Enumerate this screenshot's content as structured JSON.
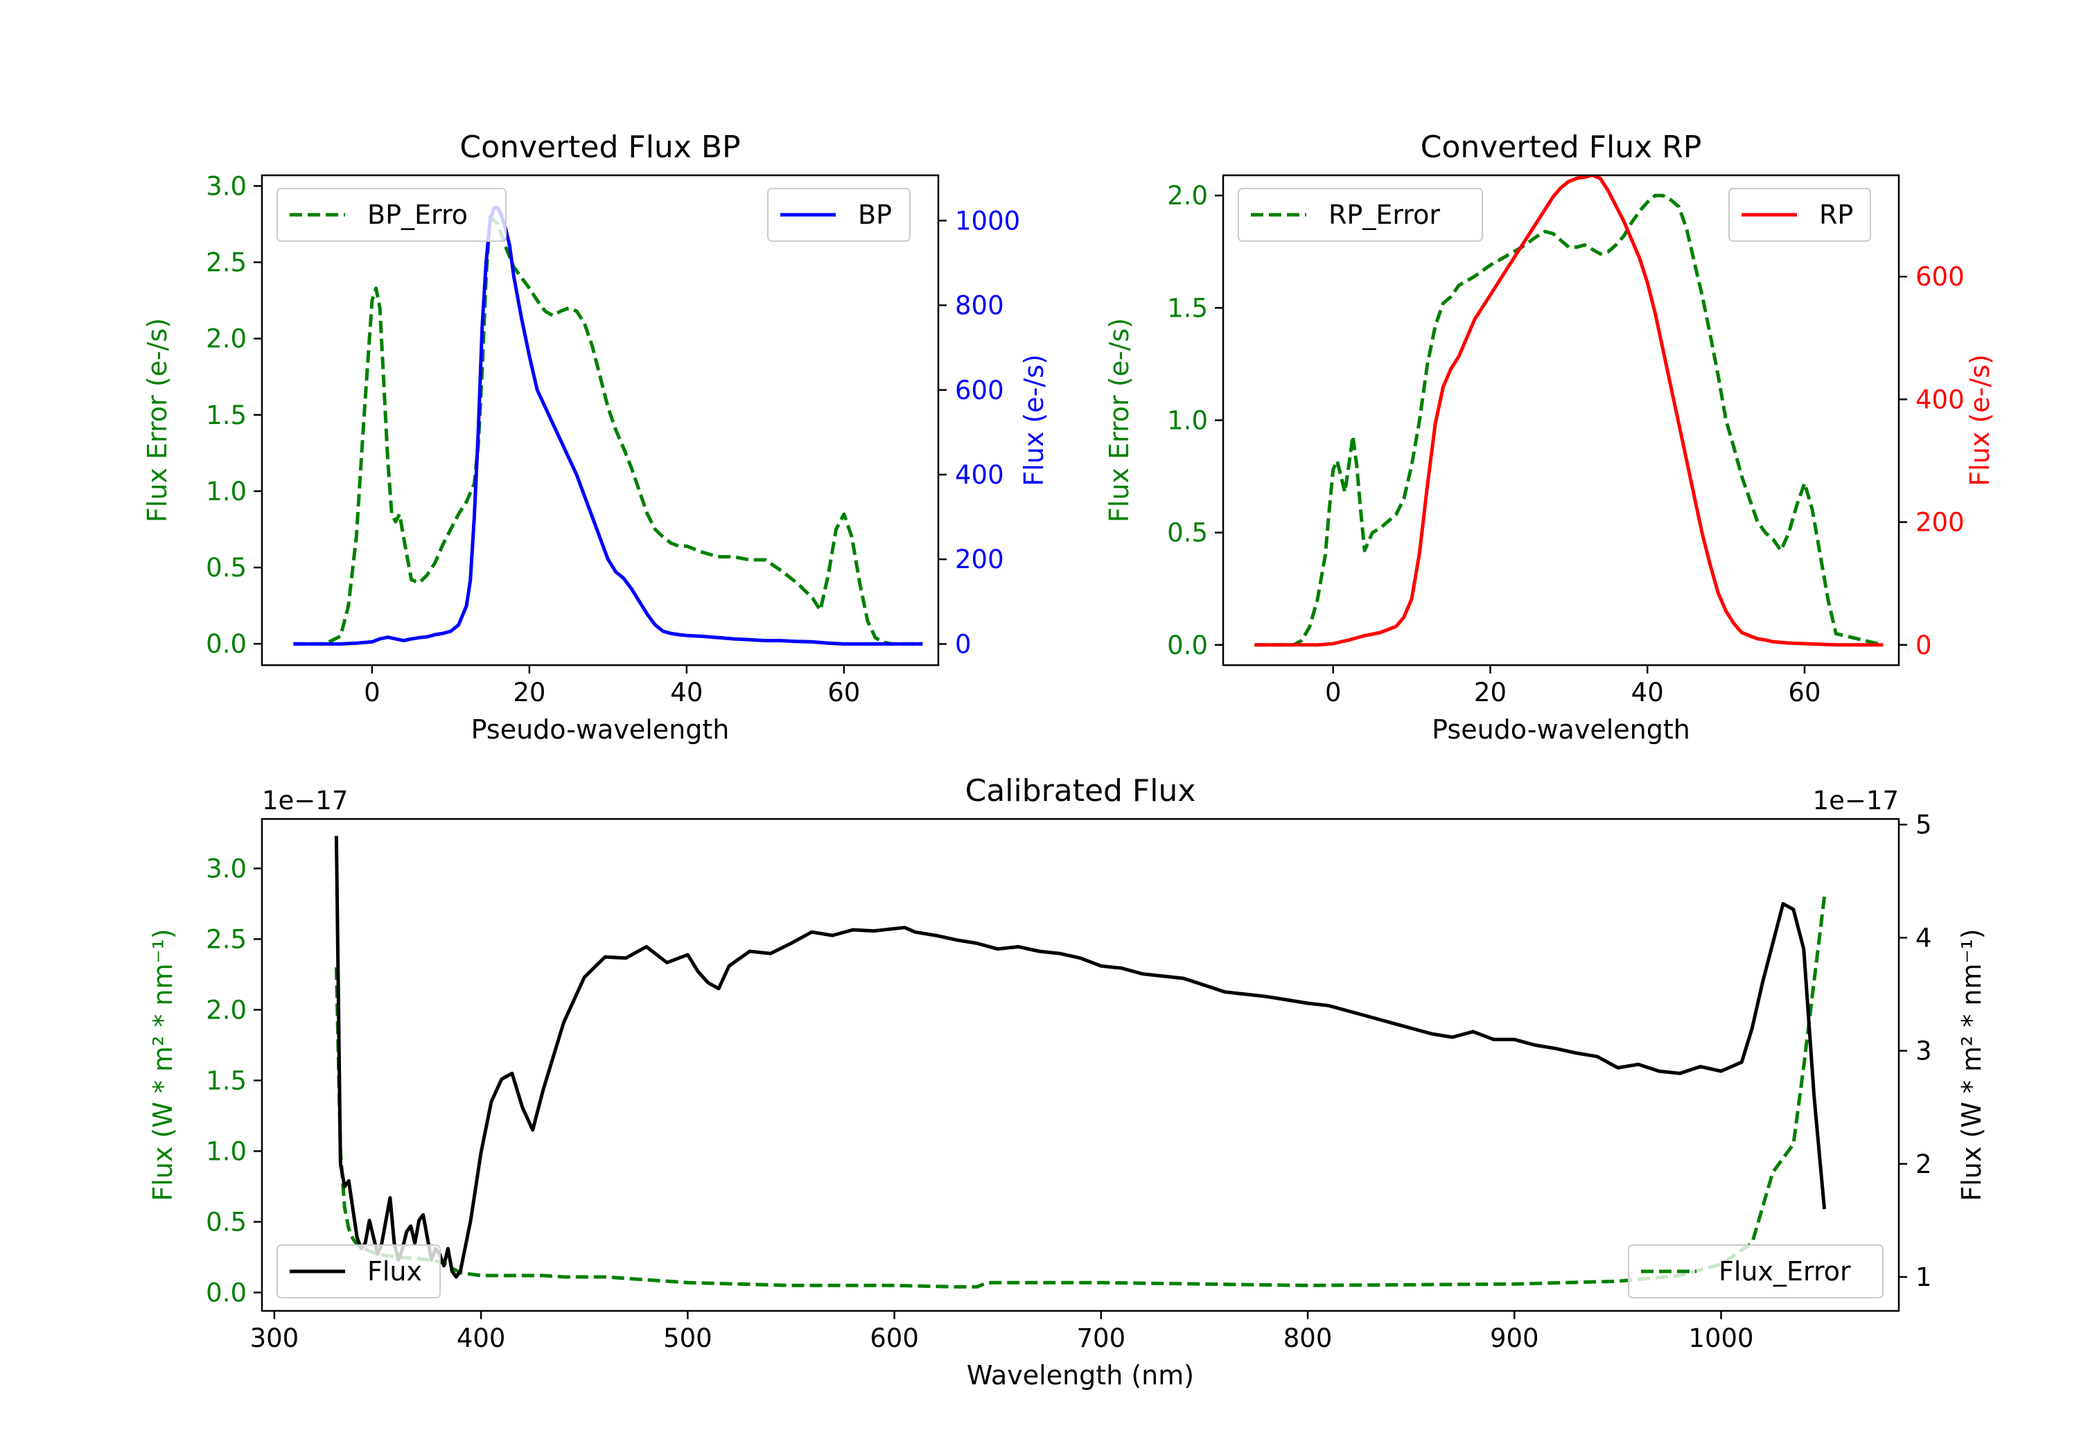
{
  "chart_data": [
    {
      "id": "bp",
      "type": "line",
      "title": "Converted Flux BP",
      "xlabel": "Pseudo-wavelength",
      "ylabel": "Flux Error (e-/s)",
      "ylabel_right": "Flux (e-/s)",
      "xlim": [
        -14,
        72
      ],
      "ylim": [
        -0.14,
        3.07
      ],
      "ylim_right": [
        -50,
        1107
      ],
      "xticks": [
        0,
        20,
        40,
        60
      ],
      "yticks": [
        0.0,
        0.5,
        1.0,
        1.5,
        2.0,
        2.5,
        3.0
      ],
      "yticks_right": [
        0,
        200,
        400,
        600,
        800,
        1000
      ],
      "left_color": "#008000",
      "right_color": "#0000ff",
      "series": [
        {
          "name": "BP_Error",
          "axis": "left",
          "color": "#008000",
          "dash": true,
          "x": [
            -10,
            -8,
            -6,
            -4,
            -3,
            -2,
            -1,
            0,
            0.5,
            1,
            1.5,
            2,
            2.5,
            3,
            3.5,
            4,
            5,
            6,
            7,
            8,
            9,
            10,
            11,
            12,
            13,
            13.5,
            14,
            14.5,
            15,
            16,
            17,
            18,
            19,
            20,
            21,
            22,
            23,
            24,
            25,
            26,
            27,
            28,
            29,
            30,
            31,
            32,
            33,
            34,
            35,
            36,
            37,
            38,
            39,
            40,
            42,
            44,
            46,
            48,
            50,
            52,
            54,
            56,
            57,
            58,
            59,
            60,
            61,
            62,
            63,
            64,
            65,
            66,
            70
          ],
          "values": [
            0.0,
            0.0,
            0.0,
            0.05,
            0.25,
            0.7,
            1.5,
            2.25,
            2.33,
            2.2,
            1.7,
            1.2,
            0.85,
            0.8,
            0.85,
            0.7,
            0.42,
            0.4,
            0.45,
            0.53,
            0.65,
            0.75,
            0.85,
            0.93,
            1.05,
            1.3,
            1.8,
            2.4,
            2.8,
            2.75,
            2.6,
            2.47,
            2.4,
            2.33,
            2.25,
            2.18,
            2.15,
            2.18,
            2.2,
            2.18,
            2.1,
            1.95,
            1.75,
            1.55,
            1.4,
            1.28,
            1.15,
            1.0,
            0.85,
            0.75,
            0.7,
            0.66,
            0.64,
            0.64,
            0.6,
            0.57,
            0.57,
            0.55,
            0.55,
            0.48,
            0.4,
            0.3,
            0.22,
            0.45,
            0.75,
            0.85,
            0.7,
            0.4,
            0.15,
            0.04,
            0.01,
            0.0,
            0.0
          ]
        },
        {
          "name": "BP",
          "axis": "right",
          "color": "#0000ff",
          "dash": false,
          "x": [
            -10,
            -8,
            -6,
            -4,
            -2,
            0,
            1,
            2,
            3,
            4,
            5,
            6,
            7,
            8,
            9,
            10,
            11,
            12,
            12.5,
            13,
            13.5,
            14,
            14.5,
            15,
            15.5,
            16,
            16.5,
            17,
            17.5,
            18,
            19,
            20,
            21,
            22,
            23,
            24,
            25,
            26,
            27,
            28,
            29,
            30,
            31,
            32,
            33,
            34,
            35,
            36,
            37,
            38,
            39,
            40,
            42,
            44,
            46,
            48,
            50,
            52,
            54,
            56,
            58,
            60,
            62,
            64,
            66,
            68,
            70
          ],
          "values": [
            0,
            0,
            0,
            0,
            2,
            5,
            12,
            16,
            12,
            8,
            12,
            15,
            17,
            22,
            25,
            30,
            45,
            90,
            150,
            300,
            500,
            750,
            900,
            1000,
            1030,
            1030,
            1010,
            980,
            940,
            870,
            770,
            680,
            600,
            560,
            520,
            480,
            440,
            400,
            350,
            300,
            250,
            200,
            170,
            155,
            130,
            100,
            70,
            45,
            30,
            25,
            22,
            20,
            18,
            15,
            12,
            10,
            8,
            8,
            6,
            5,
            2,
            0,
            0,
            0,
            0,
            0,
            0
          ]
        }
      ],
      "legend": [
        "BP_Erro",
        "BP"
      ]
    },
    {
      "id": "rp",
      "type": "line",
      "title": "Converted Flux RP",
      "xlabel": "Pseudo-wavelength",
      "ylabel": "Flux Error (e-/s)",
      "ylabel_right": "Flux (e-/s)",
      "xlim": [
        -14,
        72
      ],
      "ylim": [
        -0.09,
        2.09
      ],
      "ylim_right": [
        -33,
        765
      ],
      "xticks": [
        0,
        20,
        40,
        60
      ],
      "yticks": [
        0.0,
        0.5,
        1.0,
        1.5,
        2.0
      ],
      "yticks_right": [
        0,
        200,
        400,
        600
      ],
      "left_color": "#008000",
      "right_color": "#ff0000",
      "series": [
        {
          "name": "RP_Error",
          "axis": "left",
          "color": "#008000",
          "dash": true,
          "x": [
            -10,
            -5,
            -4,
            -3,
            -2,
            -1,
            -0.5,
            0,
            0.5,
            1,
            1.5,
            2,
            2.5,
            3,
            3.5,
            4,
            5,
            6,
            7,
            8,
            9,
            10,
            11,
            12,
            13,
            14,
            15,
            16,
            18,
            20,
            22,
            24,
            26,
            27,
            28,
            29,
            30,
            31,
            32,
            33,
            34,
            35,
            36,
            37,
            38,
            39,
            40,
            41,
            42,
            43,
            44,
            45,
            46,
            47,
            48,
            49,
            50,
            51,
            52,
            53,
            54,
            55,
            56,
            57,
            58,
            59,
            60,
            61,
            62,
            63,
            64,
            70
          ],
          "values": [
            0.0,
            0.0,
            0.02,
            0.08,
            0.2,
            0.4,
            0.6,
            0.78,
            0.82,
            0.75,
            0.68,
            0.8,
            0.93,
            0.8,
            0.6,
            0.42,
            0.5,
            0.52,
            0.55,
            0.58,
            0.65,
            0.8,
            1.0,
            1.25,
            1.42,
            1.52,
            1.55,
            1.6,
            1.64,
            1.69,
            1.73,
            1.77,
            1.82,
            1.84,
            1.83,
            1.8,
            1.77,
            1.77,
            1.78,
            1.76,
            1.74,
            1.75,
            1.78,
            1.82,
            1.88,
            1.93,
            1.97,
            2.0,
            2.0,
            1.98,
            1.95,
            1.85,
            1.7,
            1.55,
            1.38,
            1.2,
            1.0,
            0.88,
            0.75,
            0.65,
            0.55,
            0.5,
            0.47,
            0.42,
            0.5,
            0.62,
            0.72,
            0.6,
            0.4,
            0.2,
            0.05,
            0.0
          ],
          "_unused": true
        },
        {
          "name": "RP",
          "axis": "right",
          "color": "#ff0000",
          "dash": false,
          "x": [
            -10,
            -6,
            -2,
            0,
            2,
            4,
            6,
            8,
            9,
            10,
            11,
            12,
            13,
            14,
            15,
            16,
            18,
            20,
            22,
            24,
            26,
            28,
            29,
            30,
            31,
            32,
            33,
            34,
            35,
            36,
            37,
            38,
            39,
            40,
            41,
            42,
            43,
            44,
            45,
            46,
            47,
            48,
            49,
            50,
            51,
            52,
            53,
            54,
            55,
            56,
            58,
            60,
            62,
            64,
            66,
            70
          ],
          "values": [
            0,
            0,
            0,
            2,
            8,
            15,
            20,
            30,
            45,
            75,
            150,
            260,
            360,
            420,
            450,
            470,
            530,
            570,
            610,
            650,
            690,
            730,
            745,
            755,
            760,
            762,
            765,
            760,
            740,
            715,
            690,
            660,
            630,
            590,
            540,
            480,
            420,
            360,
            300,
            240,
            180,
            130,
            85,
            55,
            35,
            20,
            15,
            10,
            8,
            5,
            3,
            2,
            1,
            0,
            0,
            0
          ]
        }
      ],
      "legend": [
        "RP_Error",
        "RP"
      ]
    },
    {
      "id": "cal",
      "type": "line",
      "title": "Calibrated Flux",
      "xlabel": "Wavelength (nm)",
      "ylabel": "Flux (W * m² * nm⁻¹)",
      "ylabel_right": "Flux (W * m² * nm⁻¹)",
      "offset_left": "1e−17",
      "offset_right": "1e−17",
      "xlim": [
        294,
        1086
      ],
      "ylim": [
        -0.13,
        3.35
      ],
      "ylim_right": [
        0.7,
        5.05
      ],
      "xticks": [
        300,
        400,
        500,
        600,
        700,
        800,
        900,
        1000
      ],
      "yticks": [
        0.0,
        0.5,
        1.0,
        1.5,
        2.0,
        2.5,
        3.0
      ],
      "yticks_right": [
        1,
        2,
        3,
        4,
        5
      ],
      "left_color": "#008000",
      "right_color": "#000000",
      "series": [
        {
          "name": "Flux_Error",
          "axis": "left",
          "color": "#008000",
          "dash": true,
          "x": [
            330,
            332,
            334,
            336,
            338,
            340,
            345,
            350,
            360,
            370,
            380,
            390,
            400,
            410,
            420,
            430,
            440,
            460,
            480,
            500,
            550,
            600,
            630,
            640,
            645,
            700,
            800,
            900,
            950,
            980,
            1000,
            1010,
            1015,
            1020,
            1025,
            1030,
            1035,
            1040,
            1045,
            1050
          ],
          "values": [
            2.3,
            1.0,
            0.6,
            0.45,
            0.38,
            0.34,
            0.3,
            0.27,
            0.25,
            0.24,
            0.22,
            0.14,
            0.12,
            0.12,
            0.12,
            0.12,
            0.11,
            0.11,
            0.09,
            0.07,
            0.05,
            0.05,
            0.04,
            0.04,
            0.07,
            0.07,
            0.05,
            0.06,
            0.08,
            0.12,
            0.2,
            0.3,
            0.35,
            0.6,
            0.85,
            0.95,
            1.05,
            1.6,
            2.2,
            2.8
          ]
        },
        {
          "name": "Flux",
          "axis": "right",
          "color": "#000000",
          "dash": false,
          "x": [
            330,
            332,
            334,
            336,
            338,
            340,
            342,
            344,
            346,
            348,
            350,
            352,
            354,
            356,
            358,
            360,
            362,
            364,
            366,
            368,
            370,
            372,
            374,
            376,
            378,
            380,
            382,
            384,
            386,
            388,
            390,
            395,
            400,
            405,
            410,
            415,
            420,
            425,
            430,
            440,
            450,
            460,
            470,
            480,
            490,
            500,
            505,
            510,
            515,
            520,
            530,
            540,
            550,
            560,
            570,
            580,
            590,
            600,
            605,
            610,
            620,
            630,
            640,
            650,
            660,
            670,
            680,
            690,
            700,
            710,
            720,
            730,
            740,
            750,
            760,
            770,
            780,
            790,
            800,
            810,
            820,
            830,
            840,
            850,
            860,
            870,
            880,
            890,
            900,
            910,
            920,
            930,
            940,
            950,
            960,
            970,
            980,
            990,
            1000,
            1010,
            1015,
            1020,
            1025,
            1030,
            1035,
            1040,
            1045,
            1050
          ],
          "values": [
            4.9,
            2.0,
            1.8,
            1.85,
            1.6,
            1.35,
            1.25,
            1.3,
            1.5,
            1.35,
            1.2,
            1.3,
            1.5,
            1.7,
            1.3,
            1.15,
            1.25,
            1.4,
            1.45,
            1.3,
            1.5,
            1.55,
            1.35,
            1.15,
            1.25,
            1.2,
            1.1,
            1.25,
            1.05,
            1.0,
            1.05,
            1.5,
            2.1,
            2.55,
            2.75,
            2.8,
            2.5,
            2.3,
            2.65,
            3.25,
            3.65,
            3.83,
            3.82,
            3.92,
            3.78,
            3.85,
            3.7,
            3.6,
            3.55,
            3.75,
            3.88,
            3.86,
            3.95,
            4.05,
            4.02,
            4.07,
            4.06,
            4.08,
            4.09,
            4.05,
            4.02,
            3.98,
            3.95,
            3.9,
            3.92,
            3.88,
            3.86,
            3.82,
            3.75,
            3.73,
            3.68,
            3.66,
            3.64,
            3.58,
            3.52,
            3.5,
            3.48,
            3.45,
            3.42,
            3.4,
            3.35,
            3.3,
            3.25,
            3.2,
            3.15,
            3.12,
            3.17,
            3.1,
            3.1,
            3.05,
            3.02,
            2.98,
            2.95,
            2.85,
            2.88,
            2.82,
            2.8,
            2.86,
            2.82,
            2.9,
            3.2,
            3.6,
            3.95,
            4.3,
            4.25,
            3.9,
            2.6,
            1.6
          ]
        }
      ],
      "legend": [
        "Flux",
        "Flux_Error"
      ]
    }
  ]
}
